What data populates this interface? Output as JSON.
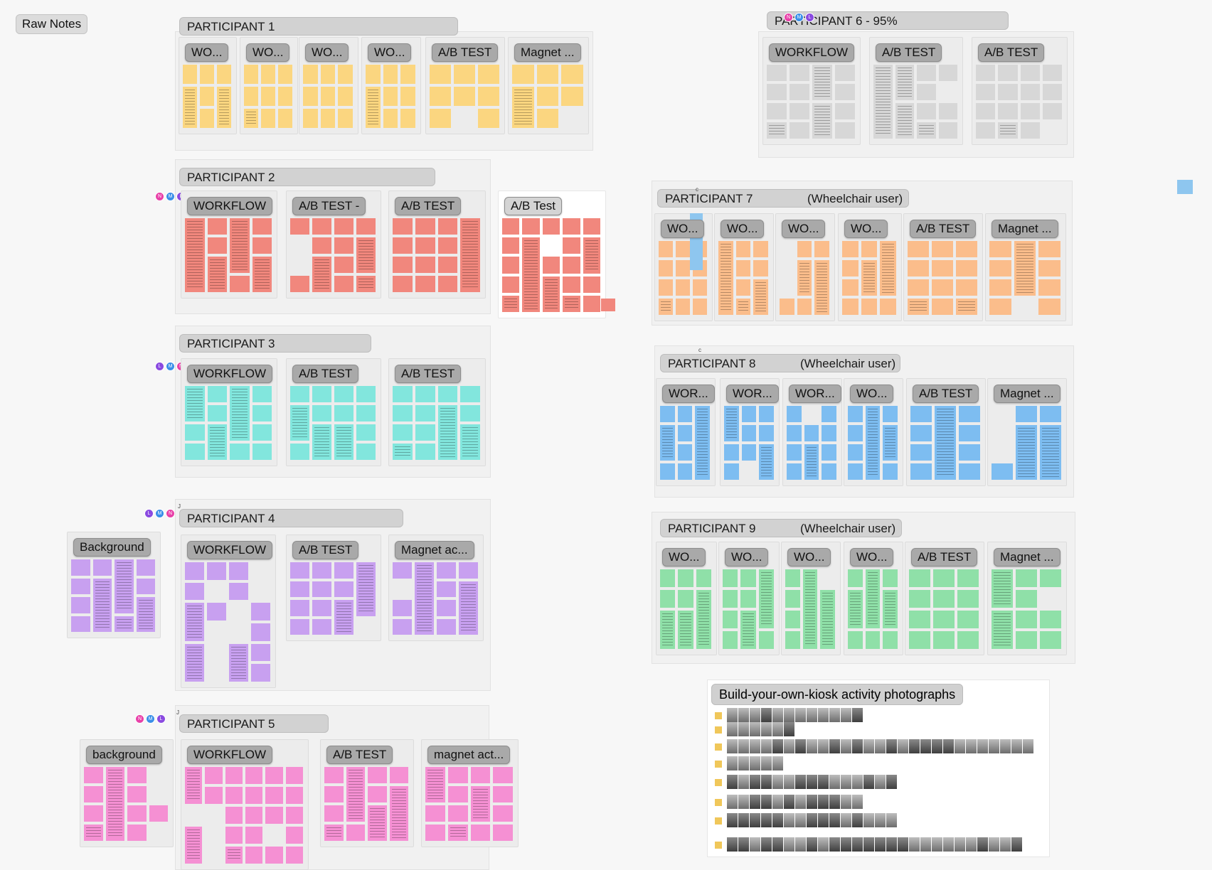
{
  "raw_notes_label": "Raw Notes",
  "marker_c": "c",
  "marker_j": "J",
  "colors": {
    "yellow": "#fbd680",
    "red": "#f1877d",
    "teal": "#82e6dd",
    "purple": "#c8a0f0",
    "pink": "#f590d3",
    "gray": "#d7d7d7",
    "orange": "#fbbd8b",
    "blue": "#7dbdf1",
    "green": "#8fe0a8"
  },
  "participants": [
    {
      "title": "PARTICIPANT 1",
      "subtitle": "",
      "color": "yellow",
      "sections": [
        "WO...",
        "WO...",
        "WO...",
        "WO...",
        "A/B TEST",
        "Magnet ..."
      ]
    },
    {
      "title": "PARTICIPANT 2",
      "subtitle": "",
      "color": "red",
      "sections": [
        "WORKFLOW",
        "A/B TEST -",
        "A/B TEST",
        "A/B Test"
      ]
    },
    {
      "title": "PARTICIPANT 3",
      "subtitle": "",
      "color": "teal",
      "sections": [
        "WORKFLOW",
        "A/B TEST",
        "A/B TEST"
      ]
    },
    {
      "title": "PARTICIPANT 4",
      "subtitle": "",
      "color": "purple",
      "sections": [
        "Background",
        "WORKFLOW",
        "A/B TEST",
        "Magnet ac..."
      ]
    },
    {
      "title": "PARTICIPANT 5",
      "subtitle": "",
      "color": "pink",
      "sections": [
        "background",
        "WORKFLOW",
        "A/B TEST",
        "magnet act..."
      ]
    },
    {
      "title": "PARTICIPANT 6 - 95%",
      "subtitle": "",
      "color": "gray",
      "sections": [
        "WORKFLOW",
        "A/B TEST",
        "A/B TEST"
      ]
    },
    {
      "title": "PARTICIPANT 7",
      "subtitle": "(Wheelchair user)",
      "color": "orange",
      "sections": [
        "WO...",
        "WO...",
        "WO...",
        "WO...",
        "A/B TEST",
        "Magnet ..."
      ]
    },
    {
      "title": "PARTICIPANT 8",
      "subtitle": "(Wheelchair user)",
      "color": "blue",
      "sections": [
        "WOR...",
        "WOR...",
        "WOR...",
        "WO...",
        "A/B TEST",
        "Magnet ..."
      ]
    },
    {
      "title": "PARTICIPANT 9",
      "subtitle": "(Wheelchair user)",
      "color": "green",
      "sections": [
        "WO...",
        "WO...",
        "WO...",
        "WO...",
        "A/B TEST",
        "Magnet ..."
      ]
    }
  ],
  "avatar_letters": {
    "pink": "N",
    "blue": "M",
    "purple": "L"
  },
  "photos": {
    "title": "Build-your-own-kiosk activity photographs",
    "row_counts": [
      12,
      6,
      27,
      5,
      15,
      12,
      15,
      26
    ]
  }
}
